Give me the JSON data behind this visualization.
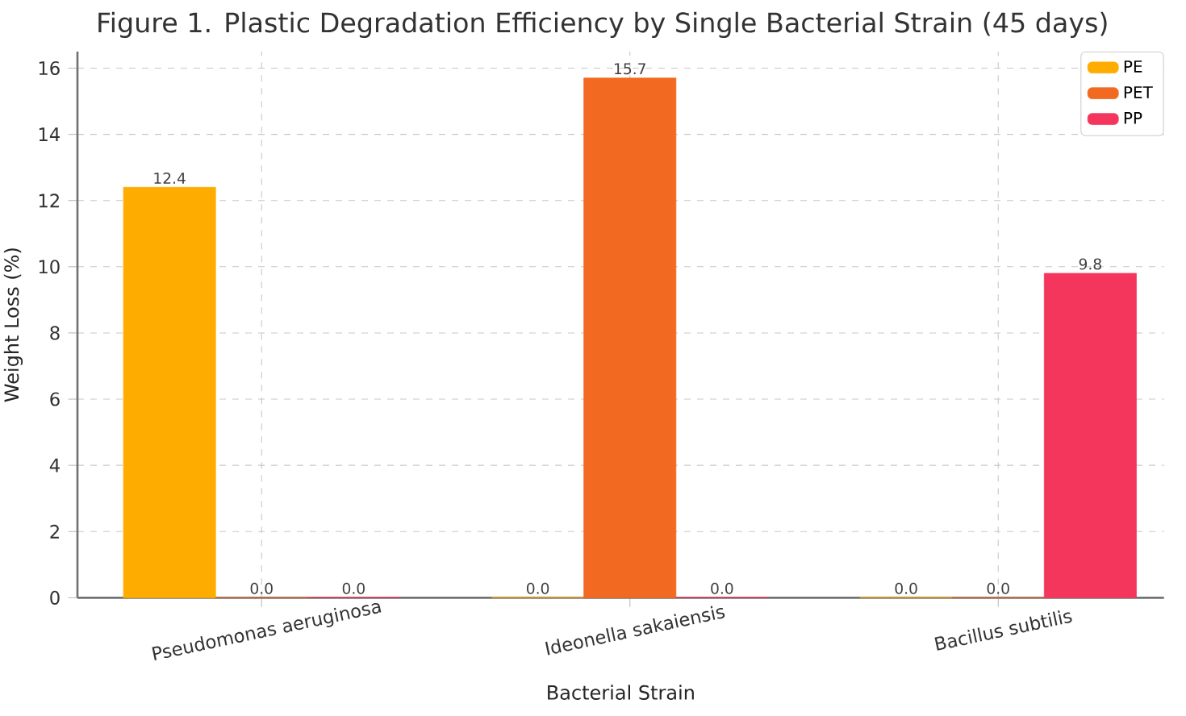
{
  "chart_data": {
    "type": "bar",
    "title": "Figure 1. Plastic Degradation Efficiency by Single Bacterial Strain (45 days)",
    "xlabel": "Bacterial Strain",
    "ylabel": "Weight Loss (%)",
    "categories": [
      "Pseudomonas aeruginosa",
      "Ideonella sakaiensis",
      "Bacillus subtilis"
    ],
    "series": [
      {
        "name": "PE",
        "color": "#ffac00",
        "values": [
          12.4,
          0,
          0
        ],
        "value_labels": [
          "12.4",
          "0.0",
          "0.0"
        ]
      },
      {
        "name": "PET",
        "color": "#f26a21",
        "values": [
          0,
          15.7,
          0
        ],
        "value_labels": [
          "0.0",
          "15.7",
          "0.0"
        ]
      },
      {
        "name": "PP",
        "color": "#f5365c",
        "values": [
          0,
          0,
          9.8
        ],
        "value_labels": [
          "0.0",
          "0.0",
          "9.8"
        ]
      }
    ],
    "ylim": [
      0,
      16.5
    ],
    "yticks": [
      0,
      2,
      4,
      6,
      8,
      10,
      12,
      14,
      16
    ],
    "grid": true,
    "legend": "top right"
  }
}
